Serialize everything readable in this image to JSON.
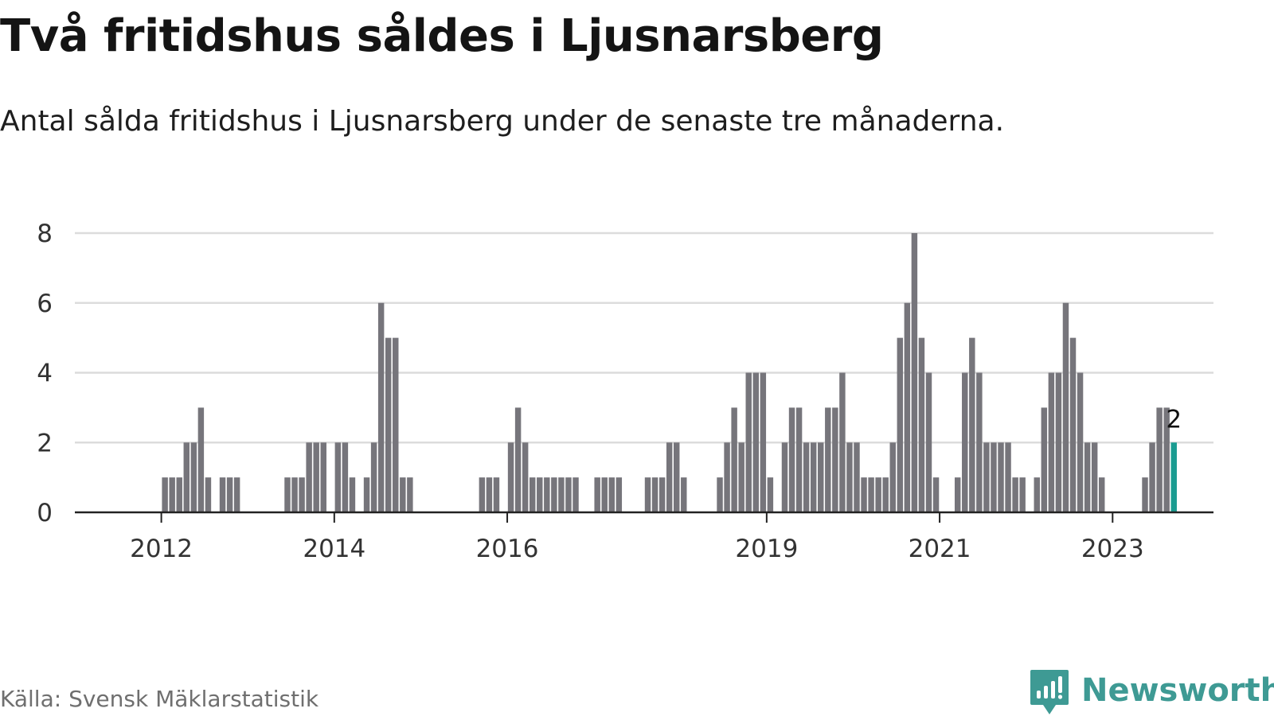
{
  "title": "Två fritidshus såldes i Ljusnarsberg",
  "subtitle": "Antal sålda fritidshus i Ljusnarsberg under de senaste tre månaderna.",
  "source": "Källa: Svensk Mäklarstatistik",
  "brand": {
    "name": "Newsworthy",
    "logo_icon": "newsworthy-chart-icon",
    "color": "#3e9a94"
  },
  "colors": {
    "bar": "#76757b",
    "highlight": "#1a9c91",
    "grid": "#dcdcdc",
    "axis": "#222222"
  },
  "chart_data": {
    "type": "bar",
    "title": "Två fritidshus såldes i Ljusnarsberg",
    "subtitle": "Antal sålda fritidshus i Ljusnarsberg under de senaste tre månaderna.",
    "x_unit": "month",
    "x_range": [
      "2011-01",
      "2024-02"
    ],
    "x_tick_labels": [
      {
        "label": "2012",
        "at": "2012-01"
      },
      {
        "label": "2014",
        "at": "2014-01"
      },
      {
        "label": "2016",
        "at": "2016-01"
      },
      {
        "label": "2019",
        "at": "2019-01"
      },
      {
        "label": "2021",
        "at": "2021-01"
      },
      {
        "label": "2023",
        "at": "2023-01"
      }
    ],
    "ylim": [
      0,
      8
    ],
    "y_ticks": [
      0,
      2,
      4,
      6,
      8
    ],
    "grid": true,
    "series": [
      {
        "values": [
          {
            "x": "2012-01",
            "y": 1
          },
          {
            "x": "2012-02",
            "y": 1
          },
          {
            "x": "2012-03",
            "y": 1
          },
          {
            "x": "2012-04",
            "y": 2
          },
          {
            "x": "2012-05",
            "y": 2
          },
          {
            "x": "2012-06",
            "y": 3
          },
          {
            "x": "2012-07",
            "y": 1
          },
          {
            "x": "2012-09",
            "y": 1
          },
          {
            "x": "2012-10",
            "y": 1
          },
          {
            "x": "2012-11",
            "y": 1
          },
          {
            "x": "2013-06",
            "y": 1
          },
          {
            "x": "2013-07",
            "y": 1
          },
          {
            "x": "2013-08",
            "y": 1
          },
          {
            "x": "2013-09",
            "y": 2
          },
          {
            "x": "2013-10",
            "y": 2
          },
          {
            "x": "2013-11",
            "y": 2
          },
          {
            "x": "2014-01",
            "y": 2
          },
          {
            "x": "2014-02",
            "y": 2
          },
          {
            "x": "2014-03",
            "y": 1
          },
          {
            "x": "2014-05",
            "y": 1
          },
          {
            "x": "2014-06",
            "y": 2
          },
          {
            "x": "2014-07",
            "y": 6
          },
          {
            "x": "2014-08",
            "y": 5
          },
          {
            "x": "2014-09",
            "y": 5
          },
          {
            "x": "2014-10",
            "y": 1
          },
          {
            "x": "2014-11",
            "y": 1
          },
          {
            "x": "2015-09",
            "y": 1
          },
          {
            "x": "2015-10",
            "y": 1
          },
          {
            "x": "2015-11",
            "y": 1
          },
          {
            "x": "2016-01",
            "y": 2
          },
          {
            "x": "2016-02",
            "y": 3
          },
          {
            "x": "2016-03",
            "y": 2
          },
          {
            "x": "2016-04",
            "y": 1
          },
          {
            "x": "2016-05",
            "y": 1
          },
          {
            "x": "2016-06",
            "y": 1
          },
          {
            "x": "2016-07",
            "y": 1
          },
          {
            "x": "2016-08",
            "y": 1
          },
          {
            "x": "2016-09",
            "y": 1
          },
          {
            "x": "2016-10",
            "y": 1
          },
          {
            "x": "2017-01",
            "y": 1
          },
          {
            "x": "2017-02",
            "y": 1
          },
          {
            "x": "2017-03",
            "y": 1
          },
          {
            "x": "2017-04",
            "y": 1
          },
          {
            "x": "2017-08",
            "y": 1
          },
          {
            "x": "2017-09",
            "y": 1
          },
          {
            "x": "2017-10",
            "y": 1
          },
          {
            "x": "2017-11",
            "y": 2
          },
          {
            "x": "2017-12",
            "y": 2
          },
          {
            "x": "2018-01",
            "y": 1
          },
          {
            "x": "2018-06",
            "y": 1
          },
          {
            "x": "2018-07",
            "y": 2
          },
          {
            "x": "2018-08",
            "y": 3
          },
          {
            "x": "2018-09",
            "y": 2
          },
          {
            "x": "2018-10",
            "y": 4
          },
          {
            "x": "2018-11",
            "y": 4
          },
          {
            "x": "2018-12",
            "y": 4
          },
          {
            "x": "2019-01",
            "y": 1
          },
          {
            "x": "2019-03",
            "y": 2
          },
          {
            "x": "2019-04",
            "y": 3
          },
          {
            "x": "2019-05",
            "y": 3
          },
          {
            "x": "2019-06",
            "y": 2
          },
          {
            "x": "2019-07",
            "y": 2
          },
          {
            "x": "2019-08",
            "y": 2
          },
          {
            "x": "2019-09",
            "y": 3
          },
          {
            "x": "2019-10",
            "y": 3
          },
          {
            "x": "2019-11",
            "y": 4
          },
          {
            "x": "2019-12",
            "y": 2
          },
          {
            "x": "2020-01",
            "y": 2
          },
          {
            "x": "2020-02",
            "y": 1
          },
          {
            "x": "2020-03",
            "y": 1
          },
          {
            "x": "2020-04",
            "y": 1
          },
          {
            "x": "2020-05",
            "y": 1
          },
          {
            "x": "2020-06",
            "y": 2
          },
          {
            "x": "2020-07",
            "y": 5
          },
          {
            "x": "2020-08",
            "y": 6
          },
          {
            "x": "2020-09",
            "y": 8
          },
          {
            "x": "2020-10",
            "y": 5
          },
          {
            "x": "2020-11",
            "y": 4
          },
          {
            "x": "2020-12",
            "y": 1
          },
          {
            "x": "2021-03",
            "y": 1
          },
          {
            "x": "2021-04",
            "y": 4
          },
          {
            "x": "2021-05",
            "y": 5
          },
          {
            "x": "2021-06",
            "y": 4
          },
          {
            "x": "2021-07",
            "y": 2
          },
          {
            "x": "2021-08",
            "y": 2
          },
          {
            "x": "2021-09",
            "y": 2
          },
          {
            "x": "2021-10",
            "y": 2
          },
          {
            "x": "2021-11",
            "y": 1
          },
          {
            "x": "2021-12",
            "y": 1
          },
          {
            "x": "2022-02",
            "y": 1
          },
          {
            "x": "2022-03",
            "y": 3
          },
          {
            "x": "2022-04",
            "y": 4
          },
          {
            "x": "2022-05",
            "y": 4
          },
          {
            "x": "2022-06",
            "y": 6
          },
          {
            "x": "2022-07",
            "y": 5
          },
          {
            "x": "2022-08",
            "y": 4
          },
          {
            "x": "2022-09",
            "y": 2
          },
          {
            "x": "2022-10",
            "y": 2
          },
          {
            "x": "2022-11",
            "y": 1
          },
          {
            "x": "2023-05",
            "y": 1
          },
          {
            "x": "2023-06",
            "y": 2
          },
          {
            "x": "2023-07",
            "y": 3
          },
          {
            "x": "2023-08",
            "y": 3
          },
          {
            "x": "2023-09",
            "y": 2,
            "highlight": true,
            "label": "2"
          }
        ]
      }
    ]
  }
}
